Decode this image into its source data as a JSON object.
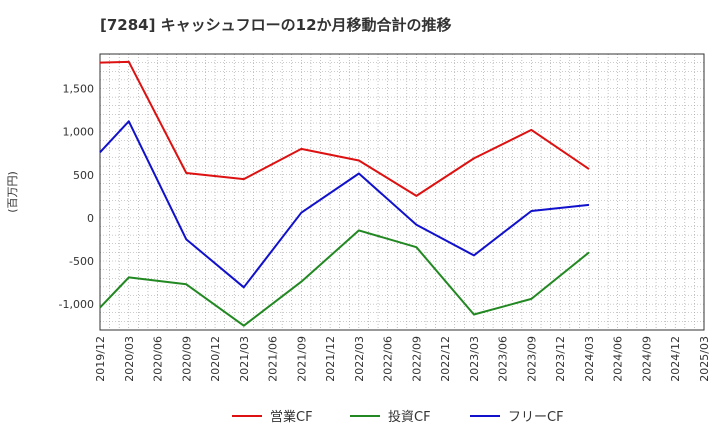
{
  "chart_data": {
    "type": "line",
    "title": "[7284]  キャッシュフローの12か月移動合計の推移",
    "ylabel": "(百万円)",
    "xlabel": "",
    "ylim": [
      -1300,
      1900
    ],
    "yticks": [
      -1000,
      -500,
      0,
      500,
      1000,
      1500
    ],
    "ytick_labels": [
      "-1,000",
      "-500",
      "0",
      "500",
      "1,000",
      "1,500"
    ],
    "x_range": [
      "2019/12",
      "2025/03"
    ],
    "x_labels": [
      "2019/12",
      "2020/03",
      "2020/06",
      "2020/09",
      "2020/12",
      "2021/03",
      "2021/06",
      "2021/09",
      "2021/12",
      "2022/03",
      "2022/06",
      "2022/09",
      "2022/12",
      "2023/03",
      "2023/06",
      "2023/09",
      "2023/12",
      "2024/03",
      "2024/06",
      "2024/09",
      "2024/12",
      "2025/03"
    ],
    "grid": true,
    "legend_position": "bottom",
    "series": [
      {
        "name": "営業CF",
        "color": "#dd1111",
        "x": [
          "2019/12",
          "2020/03",
          "2020/09",
          "2021/03",
          "2021/09",
          "2022/03",
          "2022/09",
          "2023/03",
          "2023/09",
          "2024/03"
        ],
        "values": [
          1800,
          1810,
          520,
          450,
          800,
          665,
          255,
          690,
          1020,
          565
        ]
      },
      {
        "name": "投資CF",
        "color": "#228822",
        "x": [
          "2019/12",
          "2020/03",
          "2020/09",
          "2021/03",
          "2021/09",
          "2022/03",
          "2022/09",
          "2023/03",
          "2023/09",
          "2024/03"
        ],
        "values": [
          -1040,
          -690,
          -770,
          -1250,
          -740,
          -145,
          -340,
          -1120,
          -940,
          -400
        ]
      },
      {
        "name": "フリーCF",
        "color": "#1111cc",
        "x": [
          "2019/12",
          "2020/03",
          "2020/09",
          "2021/03",
          "2021/09",
          "2022/03",
          "2022/09",
          "2023/03",
          "2023/09",
          "2024/03"
        ],
        "values": [
          760,
          1120,
          -250,
          -805,
          60,
          515,
          -80,
          -435,
          80,
          150
        ]
      }
    ]
  }
}
